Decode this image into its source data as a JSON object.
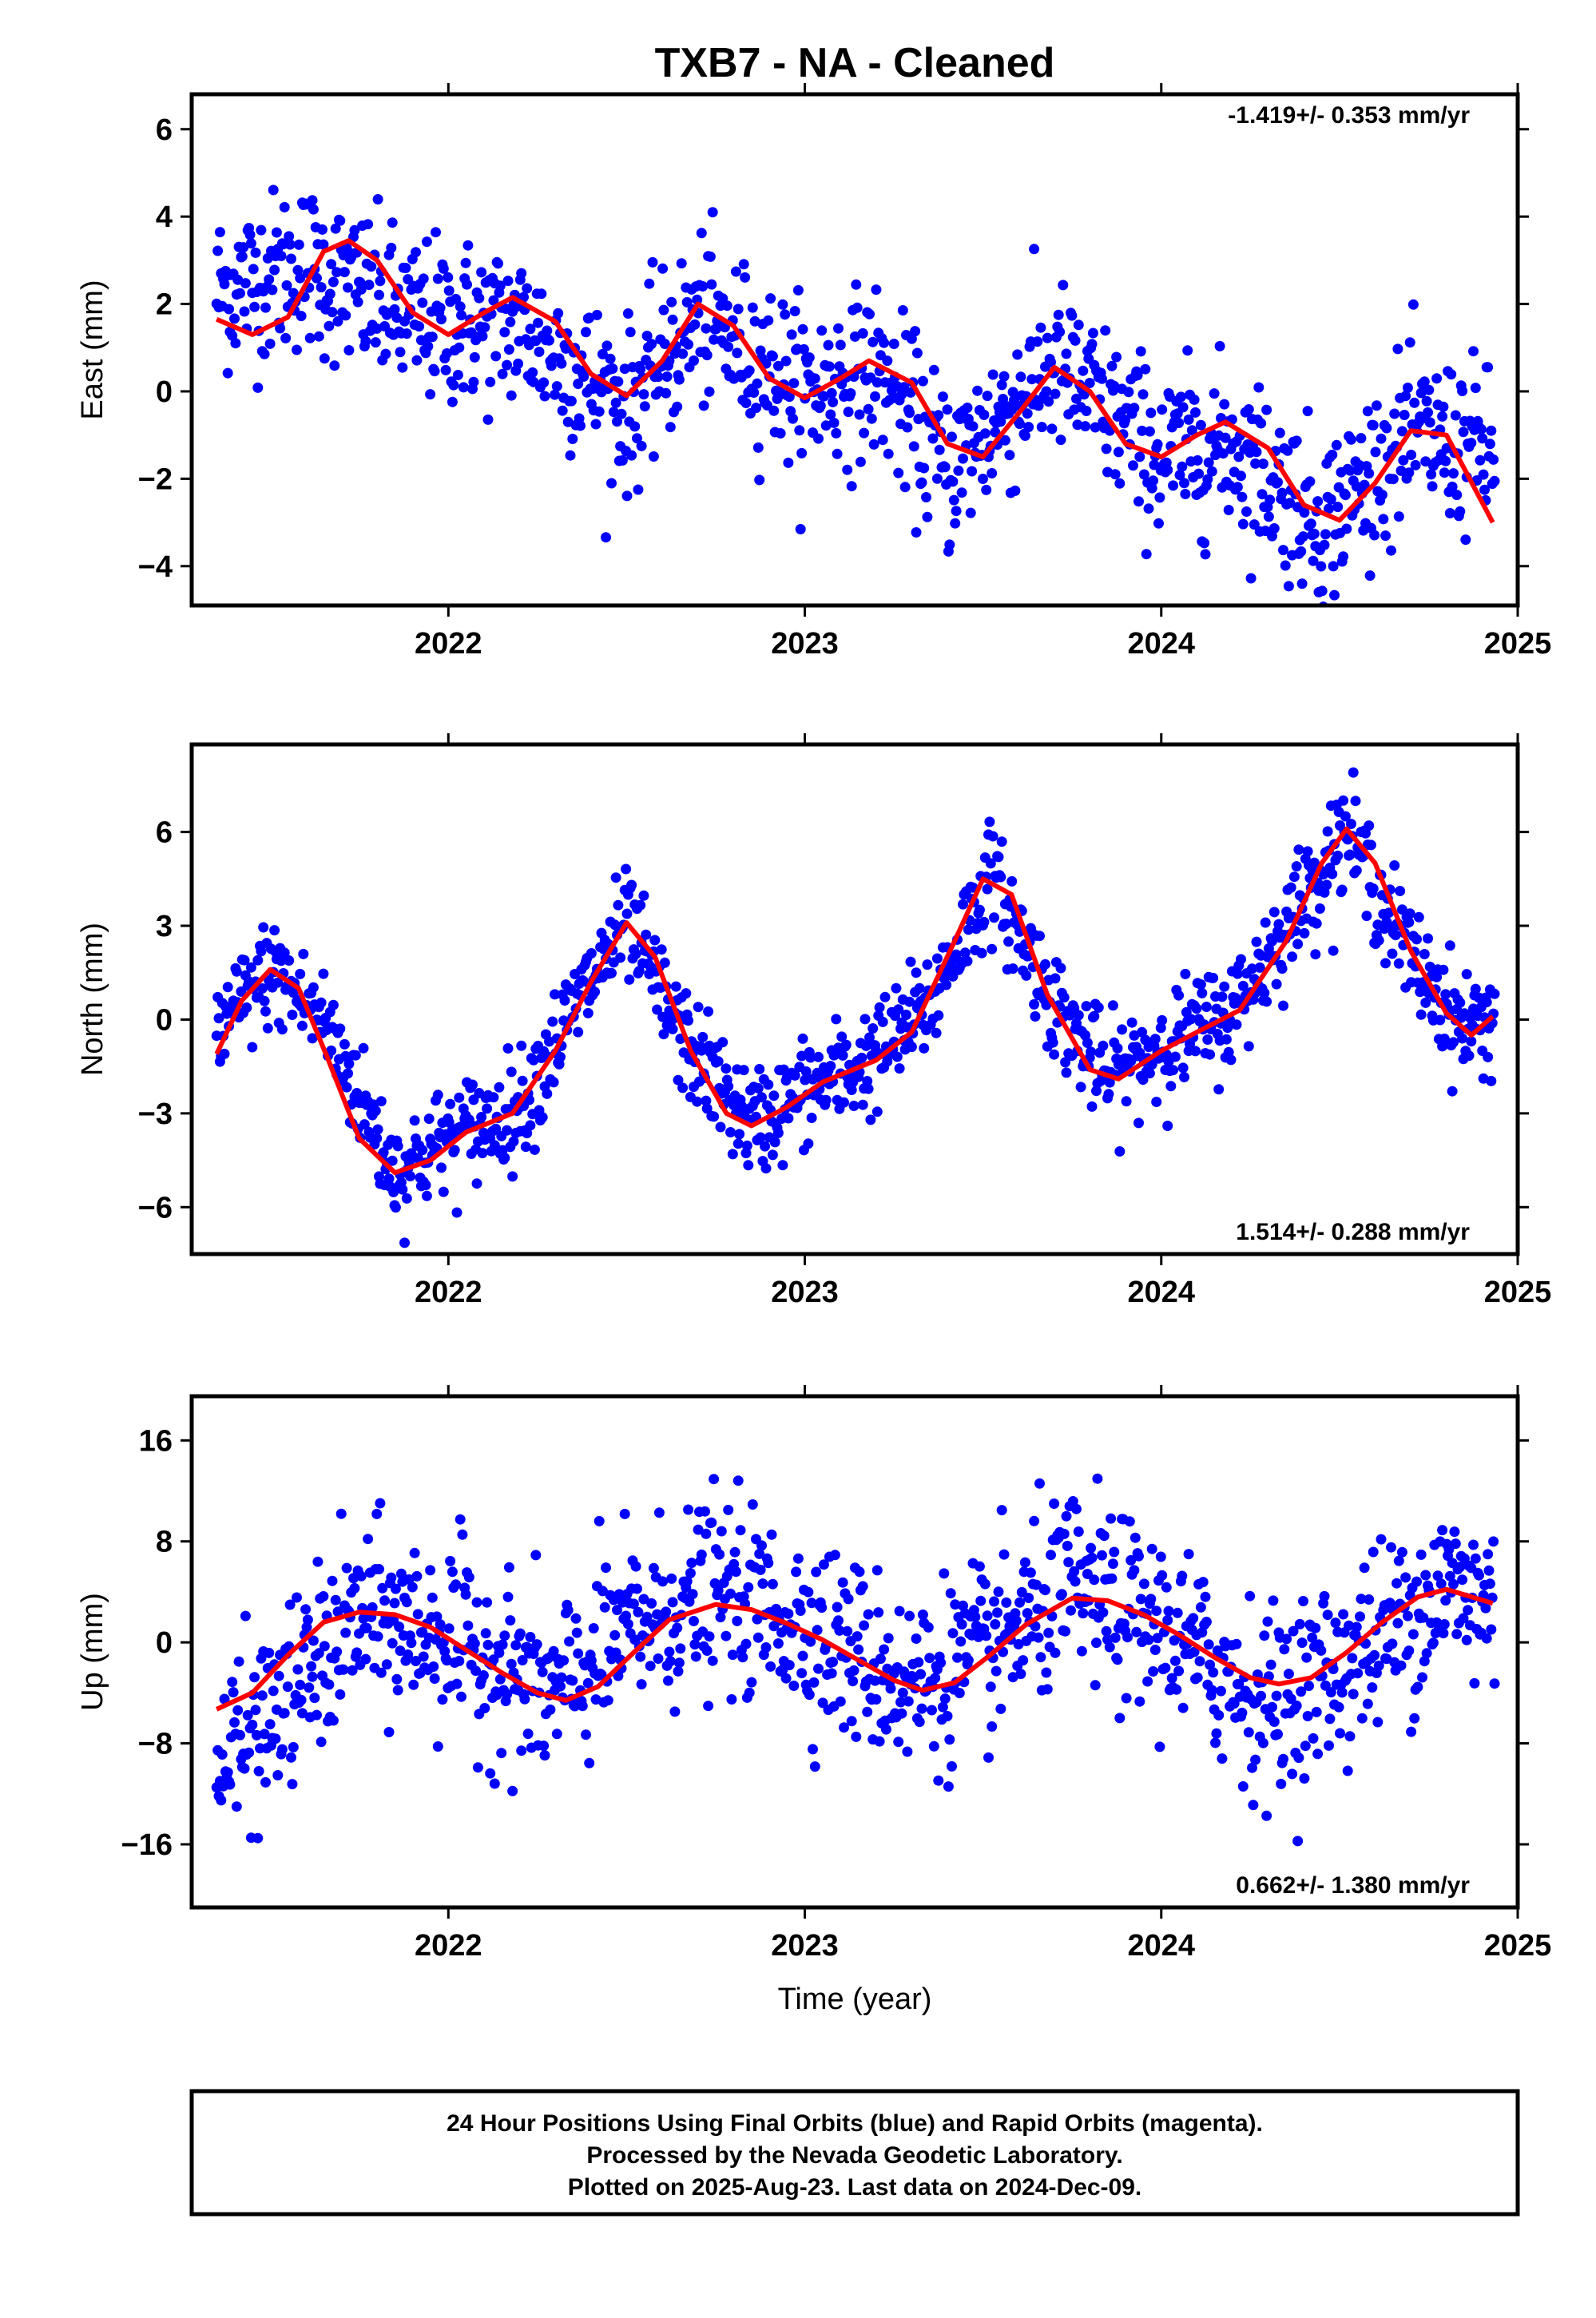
{
  "title": "TXB7  - NA - Cleaned",
  "xlabel": "Time (year)",
  "xticks": [
    2022,
    2023,
    2024,
    2025
  ],
  "colors": {
    "points": "#0000ff",
    "fit": "#ff0000",
    "frame": "#000000"
  },
  "footer": {
    "line1": "24 Hour Positions Using Final Orbits (blue) and Rapid Orbits (magenta).",
    "line2": "Processed by the Nevada Geodetic Laboratory.",
    "line3": "Plotted on 2025-Aug-23. Last data on 2024-Dec-09."
  },
  "chart_data": [
    {
      "type": "scatter",
      "panel": "east",
      "ylabel": "East (mm)",
      "rate": "-1.419+/- 0.353 mm/yr",
      "rate_position": "top-right",
      "xlim": [
        2021.28,
        2025.0
      ],
      "ylim": [
        -4.9,
        6.8
      ],
      "yticks": [
        -4,
        -2,
        0,
        2,
        4,
        6
      ],
      "series": [
        {
          "role": "daily positions",
          "trend": [
            [
              2021.35,
              2.3
            ],
            [
              2021.6,
              2.9
            ],
            [
              2021.9,
              1.6
            ],
            [
              2022.2,
              1.5
            ],
            [
              2022.5,
              -0.4
            ],
            [
              2022.7,
              1.7
            ],
            [
              2023.0,
              0.0
            ],
            [
              2023.2,
              0.5
            ],
            [
              2023.4,
              -1.8
            ],
            [
              2023.7,
              0.6
            ],
            [
              2024.0,
              -1.5
            ],
            [
              2024.2,
              -1.2
            ],
            [
              2024.45,
              -3.0
            ],
            [
              2024.7,
              -1.0
            ],
            [
              2024.93,
              -1.4
            ]
          ],
          "noise": 1.0
        },
        {
          "role": "fitted model",
          "points": [
            [
              2021.35,
              1.65
            ],
            [
              2021.45,
              1.3
            ],
            [
              2021.55,
              1.7
            ],
            [
              2021.65,
              3.2
            ],
            [
              2021.72,
              3.45
            ],
            [
              2021.8,
              3.0
            ],
            [
              2021.9,
              1.8
            ],
            [
              2022.0,
              1.3
            ],
            [
              2022.1,
              1.8
            ],
            [
              2022.18,
              2.15
            ],
            [
              2022.3,
              1.6
            ],
            [
              2022.4,
              0.4
            ],
            [
              2022.5,
              -0.1
            ],
            [
              2022.6,
              0.7
            ],
            [
              2022.7,
              2.0
            ],
            [
              2022.8,
              1.5
            ],
            [
              2022.9,
              0.3
            ],
            [
              2023.0,
              -0.15
            ],
            [
              2023.1,
              0.3
            ],
            [
              2023.18,
              0.7
            ],
            [
              2023.3,
              0.2
            ],
            [
              2023.4,
              -1.2
            ],
            [
              2023.5,
              -1.5
            ],
            [
              2023.6,
              -0.5
            ],
            [
              2023.7,
              0.55
            ],
            [
              2023.8,
              0.0
            ],
            [
              2023.9,
              -1.2
            ],
            [
              2024.0,
              -1.5
            ],
            [
              2024.1,
              -1.0
            ],
            [
              2024.18,
              -0.7
            ],
            [
              2024.3,
              -1.3
            ],
            [
              2024.4,
              -2.6
            ],
            [
              2024.5,
              -2.95
            ],
            [
              2024.6,
              -2.1
            ],
            [
              2024.7,
              -0.9
            ],
            [
              2024.8,
              -1.0
            ],
            [
              2024.93,
              -3.0
            ]
          ]
        }
      ]
    },
    {
      "type": "scatter",
      "panel": "north",
      "ylabel": "North (mm)",
      "rate": "1.514+/- 0.288 mm/yr",
      "rate_position": "bottom-right",
      "xlim": [
        2021.28,
        2025.0
      ],
      "ylim": [
        -7.5,
        8.8
      ],
      "yticks": [
        -6,
        -3,
        0,
        3,
        6
      ],
      "series": [
        {
          "role": "daily positions",
          "trend": [
            [
              2021.35,
              -0.5
            ],
            [
              2021.5,
              1.6
            ],
            [
              2021.65,
              0.0
            ],
            [
              2021.85,
              -4.9
            ],
            [
              2022.0,
              -3.8
            ],
            [
              2022.2,
              -2.8
            ],
            [
              2022.35,
              0.3
            ],
            [
              2022.5,
              3.1
            ],
            [
              2022.65,
              -0.5
            ],
            [
              2022.85,
              -3.4
            ],
            [
              2023.0,
              -2.3
            ],
            [
              2023.2,
              -1.2
            ],
            [
              2023.35,
              0.5
            ],
            [
              2023.52,
              4.6
            ],
            [
              2023.7,
              0.5
            ],
            [
              2023.85,
              -1.9
            ],
            [
              2024.0,
              -0.8
            ],
            [
              2024.2,
              0.2
            ],
            [
              2024.35,
              3.0
            ],
            [
              2024.52,
              6.1
            ],
            [
              2024.7,
              2.0
            ],
            [
              2024.85,
              -0.3
            ],
            [
              2024.93,
              0.1
            ]
          ],
          "noise": 0.9
        },
        {
          "role": "fitted model",
          "points": [
            [
              2021.35,
              -1.1
            ],
            [
              2021.42,
              0.6
            ],
            [
              2021.5,
              1.6
            ],
            [
              2021.58,
              1.0
            ],
            [
              2021.66,
              -1.2
            ],
            [
              2021.75,
              -3.8
            ],
            [
              2021.85,
              -4.9
            ],
            [
              2021.95,
              -4.5
            ],
            [
              2022.05,
              -3.6
            ],
            [
              2022.18,
              -3.0
            ],
            [
              2022.3,
              -1.0
            ],
            [
              2022.4,
              1.2
            ],
            [
              2022.5,
              3.1
            ],
            [
              2022.58,
              2.0
            ],
            [
              2022.68,
              -1.0
            ],
            [
              2022.78,
              -3.0
            ],
            [
              2022.85,
              -3.4
            ],
            [
              2022.95,
              -2.8
            ],
            [
              2023.05,
              -2.0
            ],
            [
              2023.2,
              -1.3
            ],
            [
              2023.3,
              -0.4
            ],
            [
              2023.42,
              2.5
            ],
            [
              2023.5,
              4.5
            ],
            [
              2023.58,
              4.0
            ],
            [
              2023.68,
              0.8
            ],
            [
              2023.8,
              -1.6
            ],
            [
              2023.88,
              -1.9
            ],
            [
              2024.0,
              -1.0
            ],
            [
              2024.1,
              -0.4
            ],
            [
              2024.22,
              0.3
            ],
            [
              2024.35,
              2.5
            ],
            [
              2024.45,
              5.0
            ],
            [
              2024.52,
              6.1
            ],
            [
              2024.6,
              5.0
            ],
            [
              2024.7,
              2.2
            ],
            [
              2024.8,
              0.2
            ],
            [
              2024.87,
              -0.5
            ],
            [
              2024.93,
              0.1
            ]
          ]
        }
      ]
    },
    {
      "type": "scatter",
      "panel": "up",
      "ylabel": "Up (mm)",
      "rate": "0.662+/- 1.380 mm/yr",
      "rate_position": "bottom-right",
      "xlim": [
        2021.28,
        2025.0
      ],
      "ylim": [
        -21.0,
        19.5
      ],
      "yticks": [
        -16,
        -8,
        0,
        8,
        16
      ],
      "series": [
        {
          "role": "daily positions",
          "trend": [
            [
              2021.35,
              -10.0
            ],
            [
              2021.5,
              -6.0
            ],
            [
              2021.75,
              2.0
            ],
            [
              2022.0,
              0.5
            ],
            [
              2022.3,
              -4.5
            ],
            [
              2022.5,
              1.0
            ],
            [
              2022.75,
              4.0
            ],
            [
              2023.0,
              1.5
            ],
            [
              2023.3,
              -3.5
            ],
            [
              2023.5,
              -1.0
            ],
            [
              2023.75,
              4.5
            ],
            [
              2024.0,
              1.0
            ],
            [
              2024.3,
              -5.0
            ],
            [
              2024.5,
              -2.0
            ],
            [
              2024.8,
              4.5
            ],
            [
              2024.93,
              3.0
            ]
          ],
          "noise": 3.8
        },
        {
          "role": "fitted model",
          "points": [
            [
              2021.35,
              -5.3
            ],
            [
              2021.45,
              -4.0
            ],
            [
              2021.55,
              -1.0
            ],
            [
              2021.65,
              1.6
            ],
            [
              2021.75,
              2.4
            ],
            [
              2021.85,
              2.2
            ],
            [
              2021.95,
              1.2
            ],
            [
              2022.05,
              -0.6
            ],
            [
              2022.15,
              -2.4
            ],
            [
              2022.25,
              -4.0
            ],
            [
              2022.33,
              -4.6
            ],
            [
              2022.42,
              -3.5
            ],
            [
              2022.52,
              -0.8
            ],
            [
              2022.62,
              1.8
            ],
            [
              2022.75,
              3.0
            ],
            [
              2022.85,
              2.6
            ],
            [
              2022.95,
              1.5
            ],
            [
              2023.05,
              0.2
            ],
            [
              2023.15,
              -1.4
            ],
            [
              2023.25,
              -3.0
            ],
            [
              2023.33,
              -3.8
            ],
            [
              2023.42,
              -3.2
            ],
            [
              2023.52,
              -1.0
            ],
            [
              2023.62,
              1.4
            ],
            [
              2023.75,
              3.5
            ],
            [
              2023.85,
              3.3
            ],
            [
              2023.95,
              2.2
            ],
            [
              2024.05,
              0.6
            ],
            [
              2024.15,
              -1.2
            ],
            [
              2024.25,
              -2.8
            ],
            [
              2024.33,
              -3.3
            ],
            [
              2024.42,
              -2.8
            ],
            [
              2024.52,
              -0.8
            ],
            [
              2024.62,
              1.6
            ],
            [
              2024.72,
              3.6
            ],
            [
              2024.8,
              4.2
            ],
            [
              2024.93,
              3.1
            ]
          ]
        }
      ]
    }
  ]
}
